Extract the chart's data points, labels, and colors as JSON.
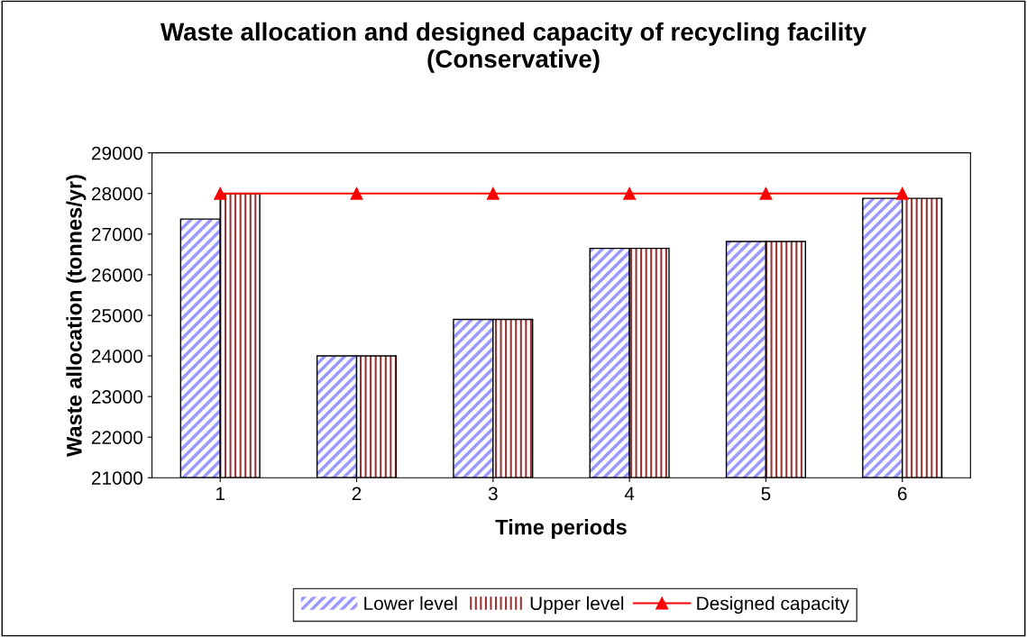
{
  "chart_data": {
    "type": "bar",
    "title": "Waste allocation and designed capacity of recycling facility\n(Conservative)",
    "xlabel": "Time periods",
    "ylabel": "Waste allocation (tonnes/yr)",
    "categories": [
      "1",
      "2",
      "3",
      "4",
      "5",
      "6"
    ],
    "series": [
      {
        "name": "Lower level",
        "color": "#9999ff",
        "values": [
          27370,
          24000,
          24900,
          26650,
          26820,
          27880
        ]
      },
      {
        "name": "Upper level",
        "color": "#993333",
        "values": [
          28000,
          24000,
          24900,
          26650,
          26820,
          27880
        ]
      },
      {
        "name": "Designed capacity",
        "type": "line",
        "color": "#ff0000",
        "marker": "triangle",
        "values": [
          28000,
          28000,
          28000,
          28000,
          28000,
          28000
        ]
      }
    ],
    "ylim": [
      21000,
      29000
    ],
    "yticks": [
      21000,
      22000,
      23000,
      24000,
      25000,
      26000,
      27000,
      28000,
      29000
    ],
    "grid": false,
    "legend": "bottom"
  }
}
